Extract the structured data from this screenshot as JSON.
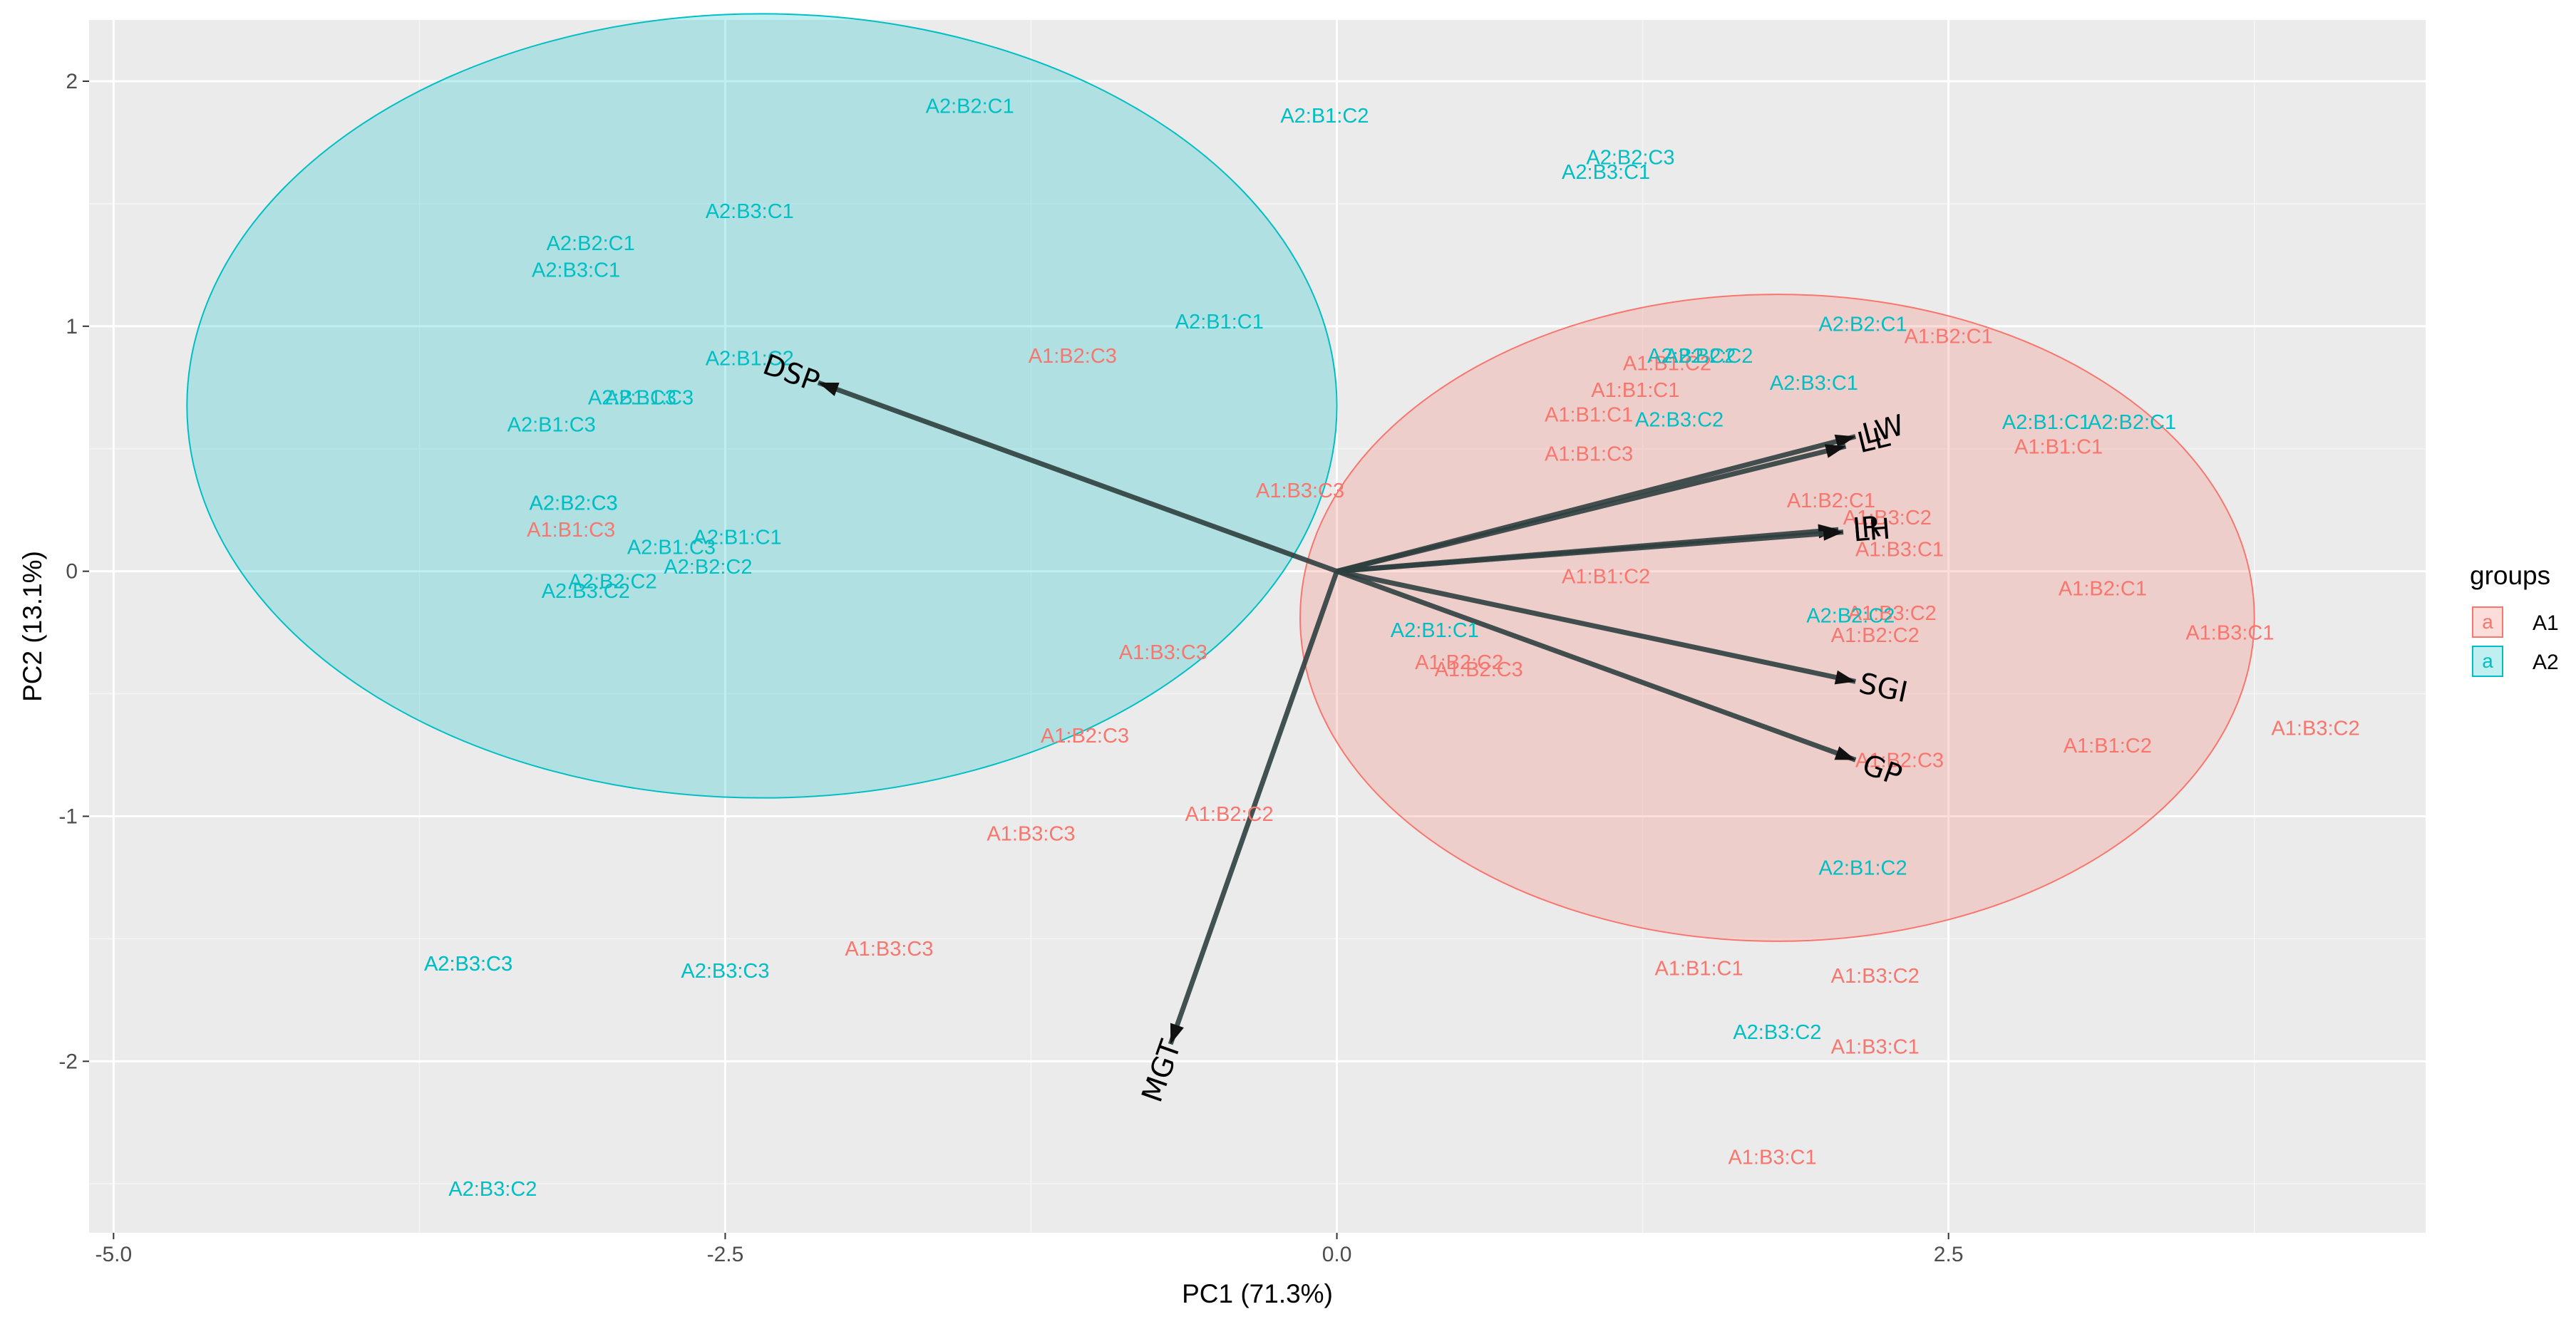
{
  "chart_data": {
    "type": "scatter",
    "subtype": "pca-biplot",
    "xlabel": "PC1 (71.3%)",
    "ylabel": "PC2 (13.1%)",
    "xlim": [
      -5.1,
      4.45
    ],
    "ylim": [
      -2.7,
      2.25
    ],
    "x_ticks": [
      -5.0,
      -2.5,
      0.0,
      2.5
    ],
    "x_tick_labels": [
      "-5.0",
      "-2.5",
      "0.0",
      "2.5"
    ],
    "y_ticks": [
      -2,
      -1,
      0,
      1,
      2
    ],
    "y_tick_labels": [
      "-2",
      "-1",
      "0",
      "1",
      "2"
    ],
    "grid": true,
    "legend": {
      "title": "groups",
      "position": "right",
      "key_glyph": "a",
      "entries": [
        {
          "label": "A1",
          "color": "#F8766D",
          "fill": "#F8766D"
        },
        {
          "label": "A2",
          "color": "#00BFC4",
          "fill": "#00BFC4"
        }
      ]
    },
    "ellipses": [
      {
        "group": "A2",
        "center": [
          -2.35,
          0.675
        ],
        "rx": 2.35,
        "ry": 1.6,
        "color": "#00BFC4"
      },
      {
        "group": "A1",
        "center": [
          1.8,
          -0.19
        ],
        "rx": 1.95,
        "ry": 1.32,
        "color": "#F8766D"
      }
    ],
    "arrow_color": "#2F3F3F",
    "variables": [
      {
        "name": "DSP",
        "x": -2.12,
        "y": 0.77
      },
      {
        "name": "LW",
        "x": 2.12,
        "y": 0.55
      },
      {
        "name": "LL",
        "x": 2.08,
        "y": 0.51
      },
      {
        "name": "IR",
        "x": 2.05,
        "y": 0.17
      },
      {
        "name": "LH",
        "x": 2.07,
        "y": 0.16
      },
      {
        "name": "SGI",
        "x": 2.12,
        "y": -0.45
      },
      {
        "name": "GP",
        "x": 2.12,
        "y": -0.77
      },
      {
        "name": "MGT",
        "x": -0.68,
        "y": -1.93
      }
    ],
    "series": [
      {
        "name": "A1",
        "color": "#F8766D",
        "points": [
          {
            "label": "A1:B1:C3",
            "x": -3.13,
            "y": 0.17
          },
          {
            "label": "A1:B2:C3",
            "x": -1.08,
            "y": 0.88
          },
          {
            "label": "A1:B3:C3",
            "x": -0.15,
            "y": 0.33
          },
          {
            "label": "A1:B3:C3",
            "x": -0.71,
            "y": -0.33
          },
          {
            "label": "A1:B2:C3",
            "x": -1.03,
            "y": -0.67
          },
          {
            "label": "A1:B2:C2",
            "x": -0.44,
            "y": -0.99
          },
          {
            "label": "A1:B3:C3",
            "x": -1.25,
            "y": -1.07
          },
          {
            "label": "A1:B3:C3",
            "x": -1.83,
            "y": -1.54
          },
          {
            "label": "A1:B1:C1",
            "x": 1.22,
            "y": 0.74
          },
          {
            "label": "A1:B1:C1",
            "x": 1.03,
            "y": 0.64
          },
          {
            "label": "A1:B1:C2",
            "x": 1.35,
            "y": 0.85
          },
          {
            "label": "A1:B1:C3",
            "x": 1.03,
            "y": 0.48
          },
          {
            "label": "A1:B1:C2",
            "x": 1.1,
            "y": -0.02
          },
          {
            "label": "A1:B2:C2",
            "x": 0.5,
            "y": -0.37
          },
          {
            "label": "A1:B2:C3",
            "x": 0.58,
            "y": -0.4
          },
          {
            "label": "A1:B2:C1",
            "x": 2.5,
            "y": 0.96
          },
          {
            "label": "A1:B1:C1",
            "x": 2.95,
            "y": 0.51
          },
          {
            "label": "A1:B2:C1",
            "x": 2.02,
            "y": 0.29
          },
          {
            "label": "A1:B3:C2",
            "x": 2.25,
            "y": 0.22
          },
          {
            "label": "A1:B3:C1",
            "x": 2.3,
            "y": 0.09
          },
          {
            "label": "A1:B2:C1",
            "x": 3.13,
            "y": -0.07
          },
          {
            "label": "A1:B3:C2",
            "x": 2.27,
            "y": -0.17
          },
          {
            "label": "A1:B2:C2",
            "x": 2.2,
            "y": -0.26
          },
          {
            "label": "A1:B3:C1",
            "x": 3.65,
            "y": -0.25
          },
          {
            "label": "A1:B2:C3",
            "x": 2.3,
            "y": -0.77
          },
          {
            "label": "A1:B1:C2",
            "x": 3.15,
            "y": -0.71
          },
          {
            "label": "A1:B3:C2",
            "x": 4.0,
            "y": -0.64
          },
          {
            "label": "A1:B1:C1",
            "x": 1.48,
            "y": -1.62
          },
          {
            "label": "A1:B3:C2",
            "x": 2.2,
            "y": -1.65
          },
          {
            "label": "A1:B3:C1",
            "x": 2.2,
            "y": -1.94
          },
          {
            "label": "A1:B3:C1",
            "x": 1.78,
            "y": -2.39
          }
        ]
      },
      {
        "name": "A2",
        "color": "#00BFC4",
        "points": [
          {
            "label": "A2:B2:C1",
            "x": -1.5,
            "y": 1.9
          },
          {
            "label": "A2:B1:C2",
            "x": -0.05,
            "y": 1.86
          },
          {
            "label": "A2:B2:C3",
            "x": 1.2,
            "y": 1.69
          },
          {
            "label": "A2:B3:C1",
            "x": 1.1,
            "y": 1.63
          },
          {
            "label": "A2:B3:C1",
            "x": -2.4,
            "y": 1.47
          },
          {
            "label": "A2:B2:C1",
            "x": -3.05,
            "y": 1.34
          },
          {
            "label": "A2:B3:C1",
            "x": -3.11,
            "y": 1.23
          },
          {
            "label": "A2:B1:C1",
            "x": -0.48,
            "y": 1.02
          },
          {
            "label": "A2:B1:C2",
            "x": -2.4,
            "y": 0.87
          },
          {
            "label": "A2:B1:C3",
            "x": -2.88,
            "y": 0.71
          },
          {
            "label": "A2:B1:C3",
            "x": -2.81,
            "y": 0.71
          },
          {
            "label": "A2:B1:C3",
            "x": -3.21,
            "y": 0.6
          },
          {
            "label": "A2:B2:C3",
            "x": -3.12,
            "y": 0.28
          },
          {
            "label": "A2:B2:C3",
            "x": -3.12,
            "y": 0.28
          },
          {
            "label": "A2:B1:C1",
            "x": -2.45,
            "y": 0.14
          },
          {
            "label": "A2:B1:C3",
            "x": -2.72,
            "y": 0.1
          },
          {
            "label": "A2:B2:C2",
            "x": -2.57,
            "y": 0.02
          },
          {
            "label": "A2:B2:C2",
            "x": -2.96,
            "y": -0.04
          },
          {
            "label": "A2:B3:C2",
            "x": -3.07,
            "y": -0.08
          },
          {
            "label": "A2:B2:C1",
            "x": 2.15,
            "y": 1.01
          },
          {
            "label": "A2:B2:C2",
            "x": 1.45,
            "y": 0.88
          },
          {
            "label": "A2:B2:C2",
            "x": 1.52,
            "y": 0.88
          },
          {
            "label": "A2:B3:C1",
            "x": 1.95,
            "y": 0.77
          },
          {
            "label": "A2:B3:C2",
            "x": 1.4,
            "y": 0.62
          },
          {
            "label": "A2:B1:C1",
            "x": 2.9,
            "y": 0.61
          },
          {
            "label": "A2:B2:C1",
            "x": 3.25,
            "y": 0.61
          },
          {
            "label": "A2:B2:C2",
            "x": 2.1,
            "y": -0.18
          },
          {
            "label": "A2:B1:C1",
            "x": 0.4,
            "y": -0.24
          },
          {
            "label": "A2:B1:C2",
            "x": 2.15,
            "y": -1.21
          },
          {
            "label": "A2:B3:C3",
            "x": -3.55,
            "y": -1.6
          },
          {
            "label": "A2:B3:C3",
            "x": -3.55,
            "y": -1.6
          },
          {
            "label": "A2:B3:C3",
            "x": -2.5,
            "y": -1.63
          },
          {
            "label": "A2:B3:C2",
            "x": 1.8,
            "y": -1.88
          },
          {
            "label": "A2:B3:C2",
            "x": -3.45,
            "y": -2.52
          }
        ]
      }
    ]
  }
}
